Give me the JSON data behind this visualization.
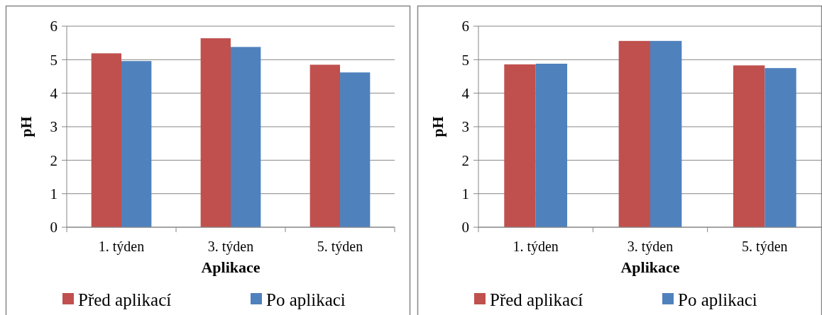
{
  "chart_data": [
    {
      "type": "bar",
      "xlabel": "Aplikace",
      "ylabel": "pH",
      "categories": [
        "1. týden",
        "3. týden",
        "5. týden"
      ],
      "series": [
        {
          "name": "Před aplikací",
          "color": "#c0504d",
          "values": [
            5.19,
            5.64,
            4.85
          ]
        },
        {
          "name": "Po aplikaci",
          "color": "#4f81bd",
          "values": [
            4.96,
            5.38,
            4.62
          ]
        }
      ],
      "ylim": [
        0,
        6
      ],
      "yticks": [
        0,
        1,
        2,
        3,
        4,
        5,
        6
      ],
      "grid": "y",
      "legend": "bottom"
    },
    {
      "type": "bar",
      "xlabel": "Aplikace",
      "ylabel": "pH",
      "categories": [
        "1. týden",
        "3. týden",
        "5. týden"
      ],
      "series": [
        {
          "name": "Před aplikací",
          "color": "#c0504d",
          "values": [
            4.86,
            5.56,
            4.83
          ]
        },
        {
          "name": "Po aplikaci",
          "color": "#4f81bd",
          "values": [
            4.88,
            5.56,
            4.75
          ]
        }
      ],
      "ylim": [
        0,
        6
      ],
      "yticks": [
        0,
        1,
        2,
        3,
        4,
        5,
        6
      ],
      "grid": "y",
      "legend": "bottom"
    }
  ]
}
